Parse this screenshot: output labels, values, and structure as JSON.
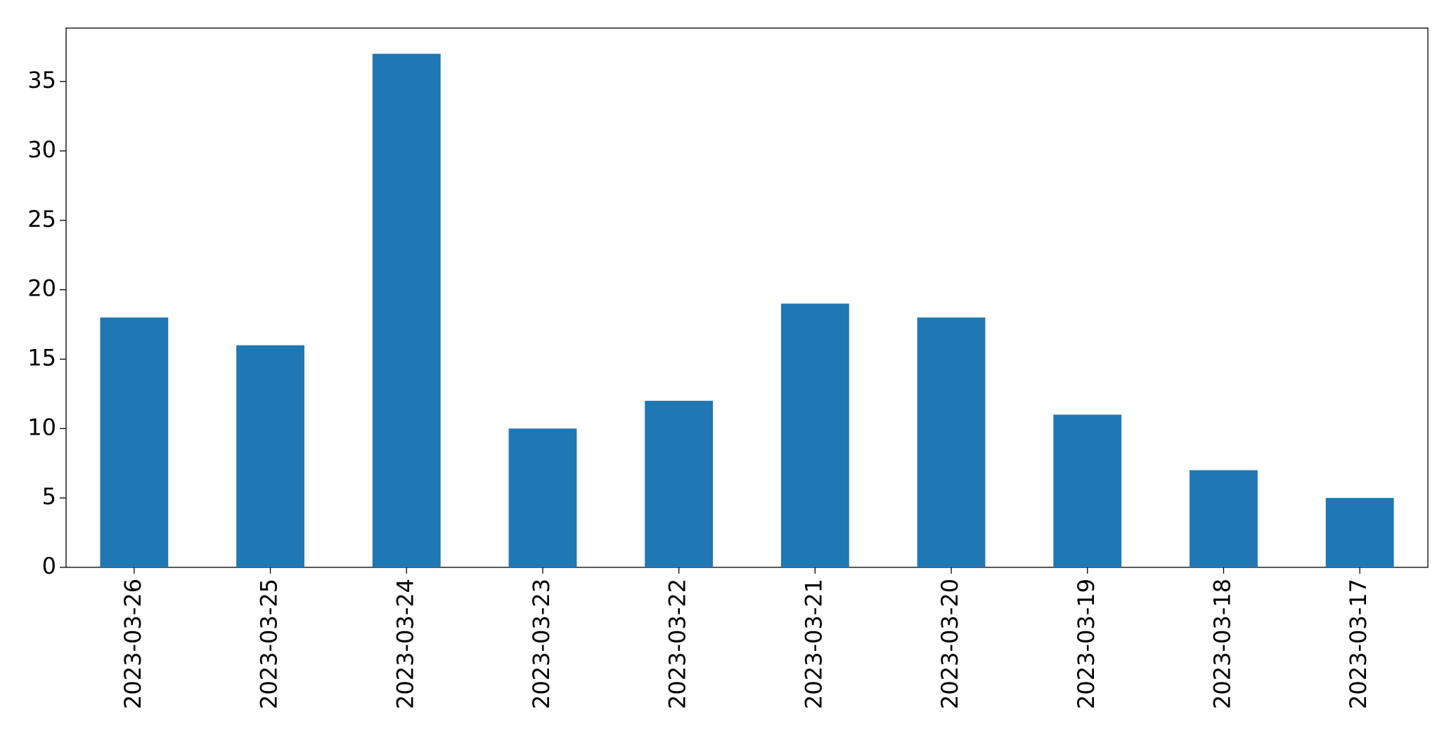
{
  "chart_data": {
    "type": "bar",
    "categories": [
      "2023-03-26",
      "2023-03-25",
      "2023-03-24",
      "2023-03-23",
      "2023-03-22",
      "2023-03-21",
      "2023-03-20",
      "2023-03-19",
      "2023-03-18",
      "2023-03-17"
    ],
    "values": [
      18,
      16,
      37,
      10,
      12,
      19,
      18,
      11,
      7,
      5
    ],
    "color": "#1f77b4",
    "ylim": [
      0,
      38.85
    ],
    "yticks": [
      0,
      5,
      10,
      15,
      20,
      25,
      30,
      35
    ],
    "grid": false
  }
}
